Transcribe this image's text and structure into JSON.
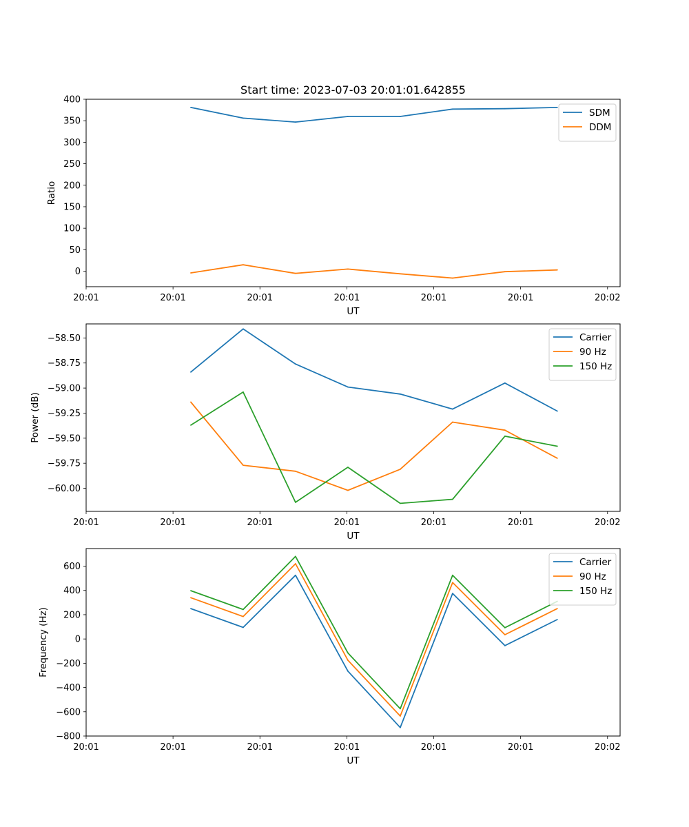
{
  "figure_title": "Start time: 2023-07-03 20:01:01.642855",
  "colors": {
    "blue": "#1f77b4",
    "orange": "#ff7f0e",
    "green": "#2ca02c"
  },
  "chart_data": [
    {
      "type": "line",
      "title": "Start time: 2023-07-03 20:01:01.642855",
      "xlabel": "UT",
      "ylabel": "Ratio",
      "x": [
        2,
        3,
        4,
        5,
        6,
        7,
        8,
        9
      ],
      "xlim": [
        0,
        10.2
      ],
      "xticks": [
        0,
        1.66,
        3.32,
        4.98,
        6.64,
        8.3,
        9.96
      ],
      "xtick_labels": [
        "20:01",
        "20:01",
        "20:01",
        "20:01",
        "20:01",
        "20:01",
        "20:02"
      ],
      "ylim": [
        -36,
        400
      ],
      "yticks": [
        0,
        50,
        100,
        150,
        200,
        250,
        300,
        350,
        400
      ],
      "ytick_labels": [
        "0",
        "50",
        "100",
        "150",
        "200",
        "250",
        "300",
        "350",
        "400"
      ],
      "legend_position": "top-right",
      "series": [
        {
          "name": "SDM",
          "color": "#1f77b4",
          "values": [
            381,
            356,
            347,
            360,
            360,
            377,
            378,
            381
          ]
        },
        {
          "name": "DDM",
          "color": "#ff7f0e",
          "values": [
            -4,
            15,
            -5,
            5,
            -6,
            -16,
            -1,
            3
          ]
        }
      ]
    },
    {
      "type": "line",
      "title": "",
      "xlabel": "UT",
      "ylabel": "Power (dB)",
      "x": [
        2,
        3,
        4,
        5,
        6,
        7,
        8,
        9
      ],
      "xlim": [
        0,
        10.2
      ],
      "xticks": [
        0,
        1.66,
        3.32,
        4.98,
        6.64,
        8.3,
        9.96
      ],
      "xtick_labels": [
        "20:01",
        "20:01",
        "20:01",
        "20:01",
        "20:01",
        "20:01",
        "20:02"
      ],
      "ylim": [
        -60.23,
        -58.36
      ],
      "yticks": [
        -60.0,
        -59.75,
        -59.5,
        -59.25,
        -59.0,
        -58.75,
        -58.5
      ],
      "ytick_labels": [
        "−60.00",
        "−59.75",
        "−59.50",
        "−59.25",
        "−59.00",
        "−58.75",
        "−58.50"
      ],
      "legend_position": "top-right",
      "series": [
        {
          "name": "Carrier",
          "color": "#1f77b4",
          "values": [
            -58.84,
            -58.41,
            -58.76,
            -58.99,
            -59.06,
            -59.21,
            -58.95,
            -59.23
          ]
        },
        {
          "name": "90 Hz",
          "color": "#ff7f0e",
          "values": [
            -59.14,
            -59.77,
            -59.83,
            -60.02,
            -59.81,
            -59.34,
            -59.42,
            -59.7
          ]
        },
        {
          "name": "150 Hz",
          "color": "#2ca02c",
          "values": [
            -59.37,
            -59.04,
            -60.14,
            -59.79,
            -60.15,
            -60.11,
            -59.48,
            -59.58
          ]
        }
      ]
    },
    {
      "type": "line",
      "title": "",
      "xlabel": "UT",
      "ylabel": "Frequency (Hz)",
      "x": [
        2,
        3,
        4,
        5,
        6,
        7,
        8,
        9
      ],
      "xlim": [
        0,
        10.2
      ],
      "xticks": [
        0,
        1.66,
        3.32,
        4.98,
        6.64,
        8.3,
        9.96
      ],
      "xtick_labels": [
        "20:01",
        "20:01",
        "20:01",
        "20:01",
        "20:01",
        "20:01",
        "20:02"
      ],
      "ylim": [
        -800,
        745
      ],
      "yticks": [
        -800,
        -600,
        -400,
        -200,
        0,
        200,
        400,
        600
      ],
      "ytick_labels": [
        "−800",
        "−600",
        "−400",
        "−200",
        "0",
        "200",
        "400",
        "600"
      ],
      "legend_position": "top-right",
      "series": [
        {
          "name": "Carrier",
          "color": "#1f77b4",
          "values": [
            250,
            95,
            525,
            -265,
            -730,
            375,
            -55,
            160
          ]
        },
        {
          "name": "90 Hz",
          "color": "#ff7f0e",
          "values": [
            340,
            185,
            620,
            -175,
            -635,
            465,
            35,
            250
          ]
        },
        {
          "name": "150 Hz",
          "color": "#2ca02c",
          "values": [
            398,
            243,
            680,
            -115,
            -575,
            525,
            93,
            310
          ]
        }
      ]
    }
  ]
}
